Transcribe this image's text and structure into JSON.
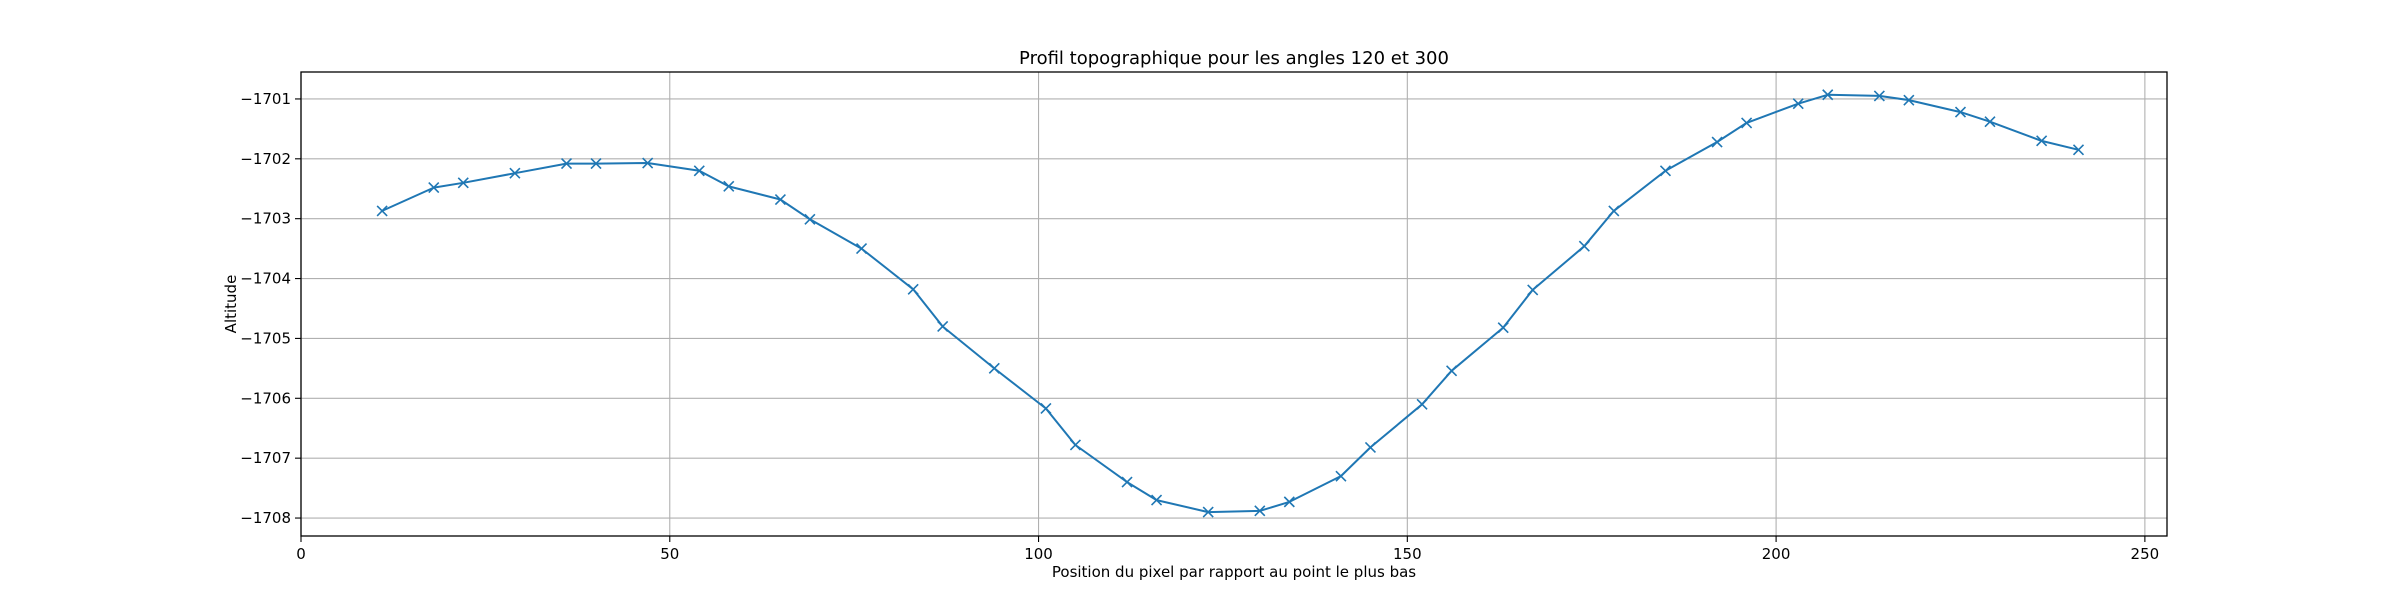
{
  "chart_data": {
    "type": "line",
    "title": "Profil topographique pour les angles 120 et 300",
    "xlabel": "Position du pixel par rapport au point le plus bas",
    "ylabel": "Altitude",
    "xlim": [
      0,
      253
    ],
    "ylim": [
      -1708.3,
      -1700.55
    ],
    "x_ticks": [
      0,
      50,
      100,
      150,
      200,
      250
    ],
    "x_tick_labels": [
      "0",
      "50",
      "100",
      "150",
      "200",
      "250"
    ],
    "y_ticks": [
      -1701,
      -1702,
      -1703,
      -1704,
      -1705,
      -1706,
      -1707,
      -1708
    ],
    "y_tick_labels": [
      "−1701",
      "−1702",
      "−1703",
      "−1704",
      "−1705",
      "−1706",
      "−1707",
      "−1708"
    ],
    "grid": true,
    "line_color": "#1f77b4",
    "marker": "x",
    "series": [
      {
        "name": "",
        "x": [
          11,
          18,
          22,
          29,
          36,
          40,
          47,
          54,
          58,
          65,
          69,
          76,
          83,
          87,
          94,
          101,
          105,
          112,
          116,
          123,
          130,
          134,
          141,
          145,
          152,
          156,
          163,
          167,
          174,
          178,
          185,
          192,
          196,
          203,
          207,
          214,
          218,
          225,
          229,
          236,
          241
        ],
        "y": [
          -1702.87,
          -1702.48,
          -1702.4,
          -1702.24,
          -1702.08,
          -1702.08,
          -1702.07,
          -1702.2,
          -1702.46,
          -1702.68,
          -1703.01,
          -1703.5,
          -1704.18,
          -1704.8,
          -1705.5,
          -1706.17,
          -1706.78,
          -1707.4,
          -1707.7,
          -1707.9,
          -1707.88,
          -1707.73,
          -1707.3,
          -1706.82,
          -1706.1,
          -1705.54,
          -1704.82,
          -1704.19,
          -1703.46,
          -1702.87,
          -1702.2,
          -1701.72,
          -1701.4,
          -1701.08,
          -1700.93,
          -1700.95,
          -1701.02,
          -1701.22,
          -1701.38,
          -1701.7,
          -1701.85
        ]
      }
    ]
  }
}
